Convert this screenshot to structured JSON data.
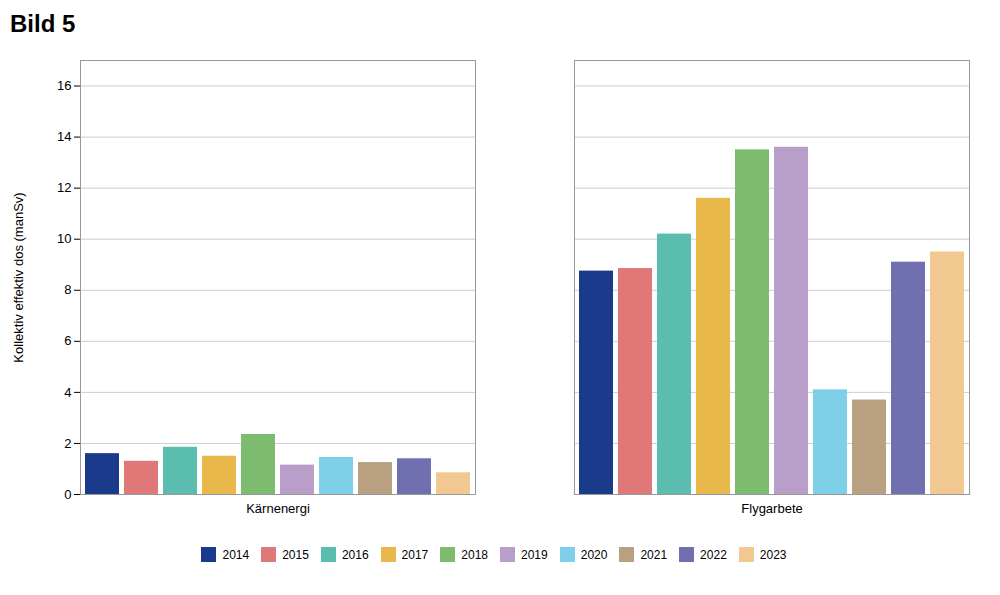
{
  "chart_data": {
    "type": "bar",
    "title": "Bild 5",
    "ylabel": "Kollektiv effektiv dos (manSv)",
    "categories": [
      "Kärnenergi",
      "Flygarbete"
    ],
    "series": [
      {
        "name": "2014",
        "color": "#1a3a8c",
        "values": [
          1.6,
          8.75
        ]
      },
      {
        "name": "2015",
        "color": "#e07878",
        "values": [
          1.3,
          8.85
        ]
      },
      {
        "name": "2016",
        "color": "#5bbcb0",
        "values": [
          1.85,
          10.2
        ]
      },
      {
        "name": "2017",
        "color": "#e8b84b",
        "values": [
          1.5,
          11.6
        ]
      },
      {
        "name": "2018",
        "color": "#7dbc6e",
        "values": [
          2.35,
          13.5
        ]
      },
      {
        "name": "2019",
        "color": "#b89ec8",
        "values": [
          1.15,
          13.6
        ]
      },
      {
        "name": "2020",
        "color": "#7dd0e8",
        "values": [
          1.45,
          4.1
        ]
      },
      {
        "name": "2021",
        "color": "#b8a080",
        "values": [
          1.25,
          3.7
        ]
      },
      {
        "name": "2022",
        "color": "#7070b0",
        "values": [
          1.4,
          9.1
        ]
      },
      {
        "name": "2023",
        "color": "#f0c890",
        "values": [
          0.85,
          9.5
        ]
      }
    ],
    "ylim": [
      0,
      17
    ],
    "yticks": [
      0,
      2,
      4,
      6,
      8,
      10,
      12,
      14,
      16
    ],
    "grid": true,
    "legend": "bottom"
  }
}
